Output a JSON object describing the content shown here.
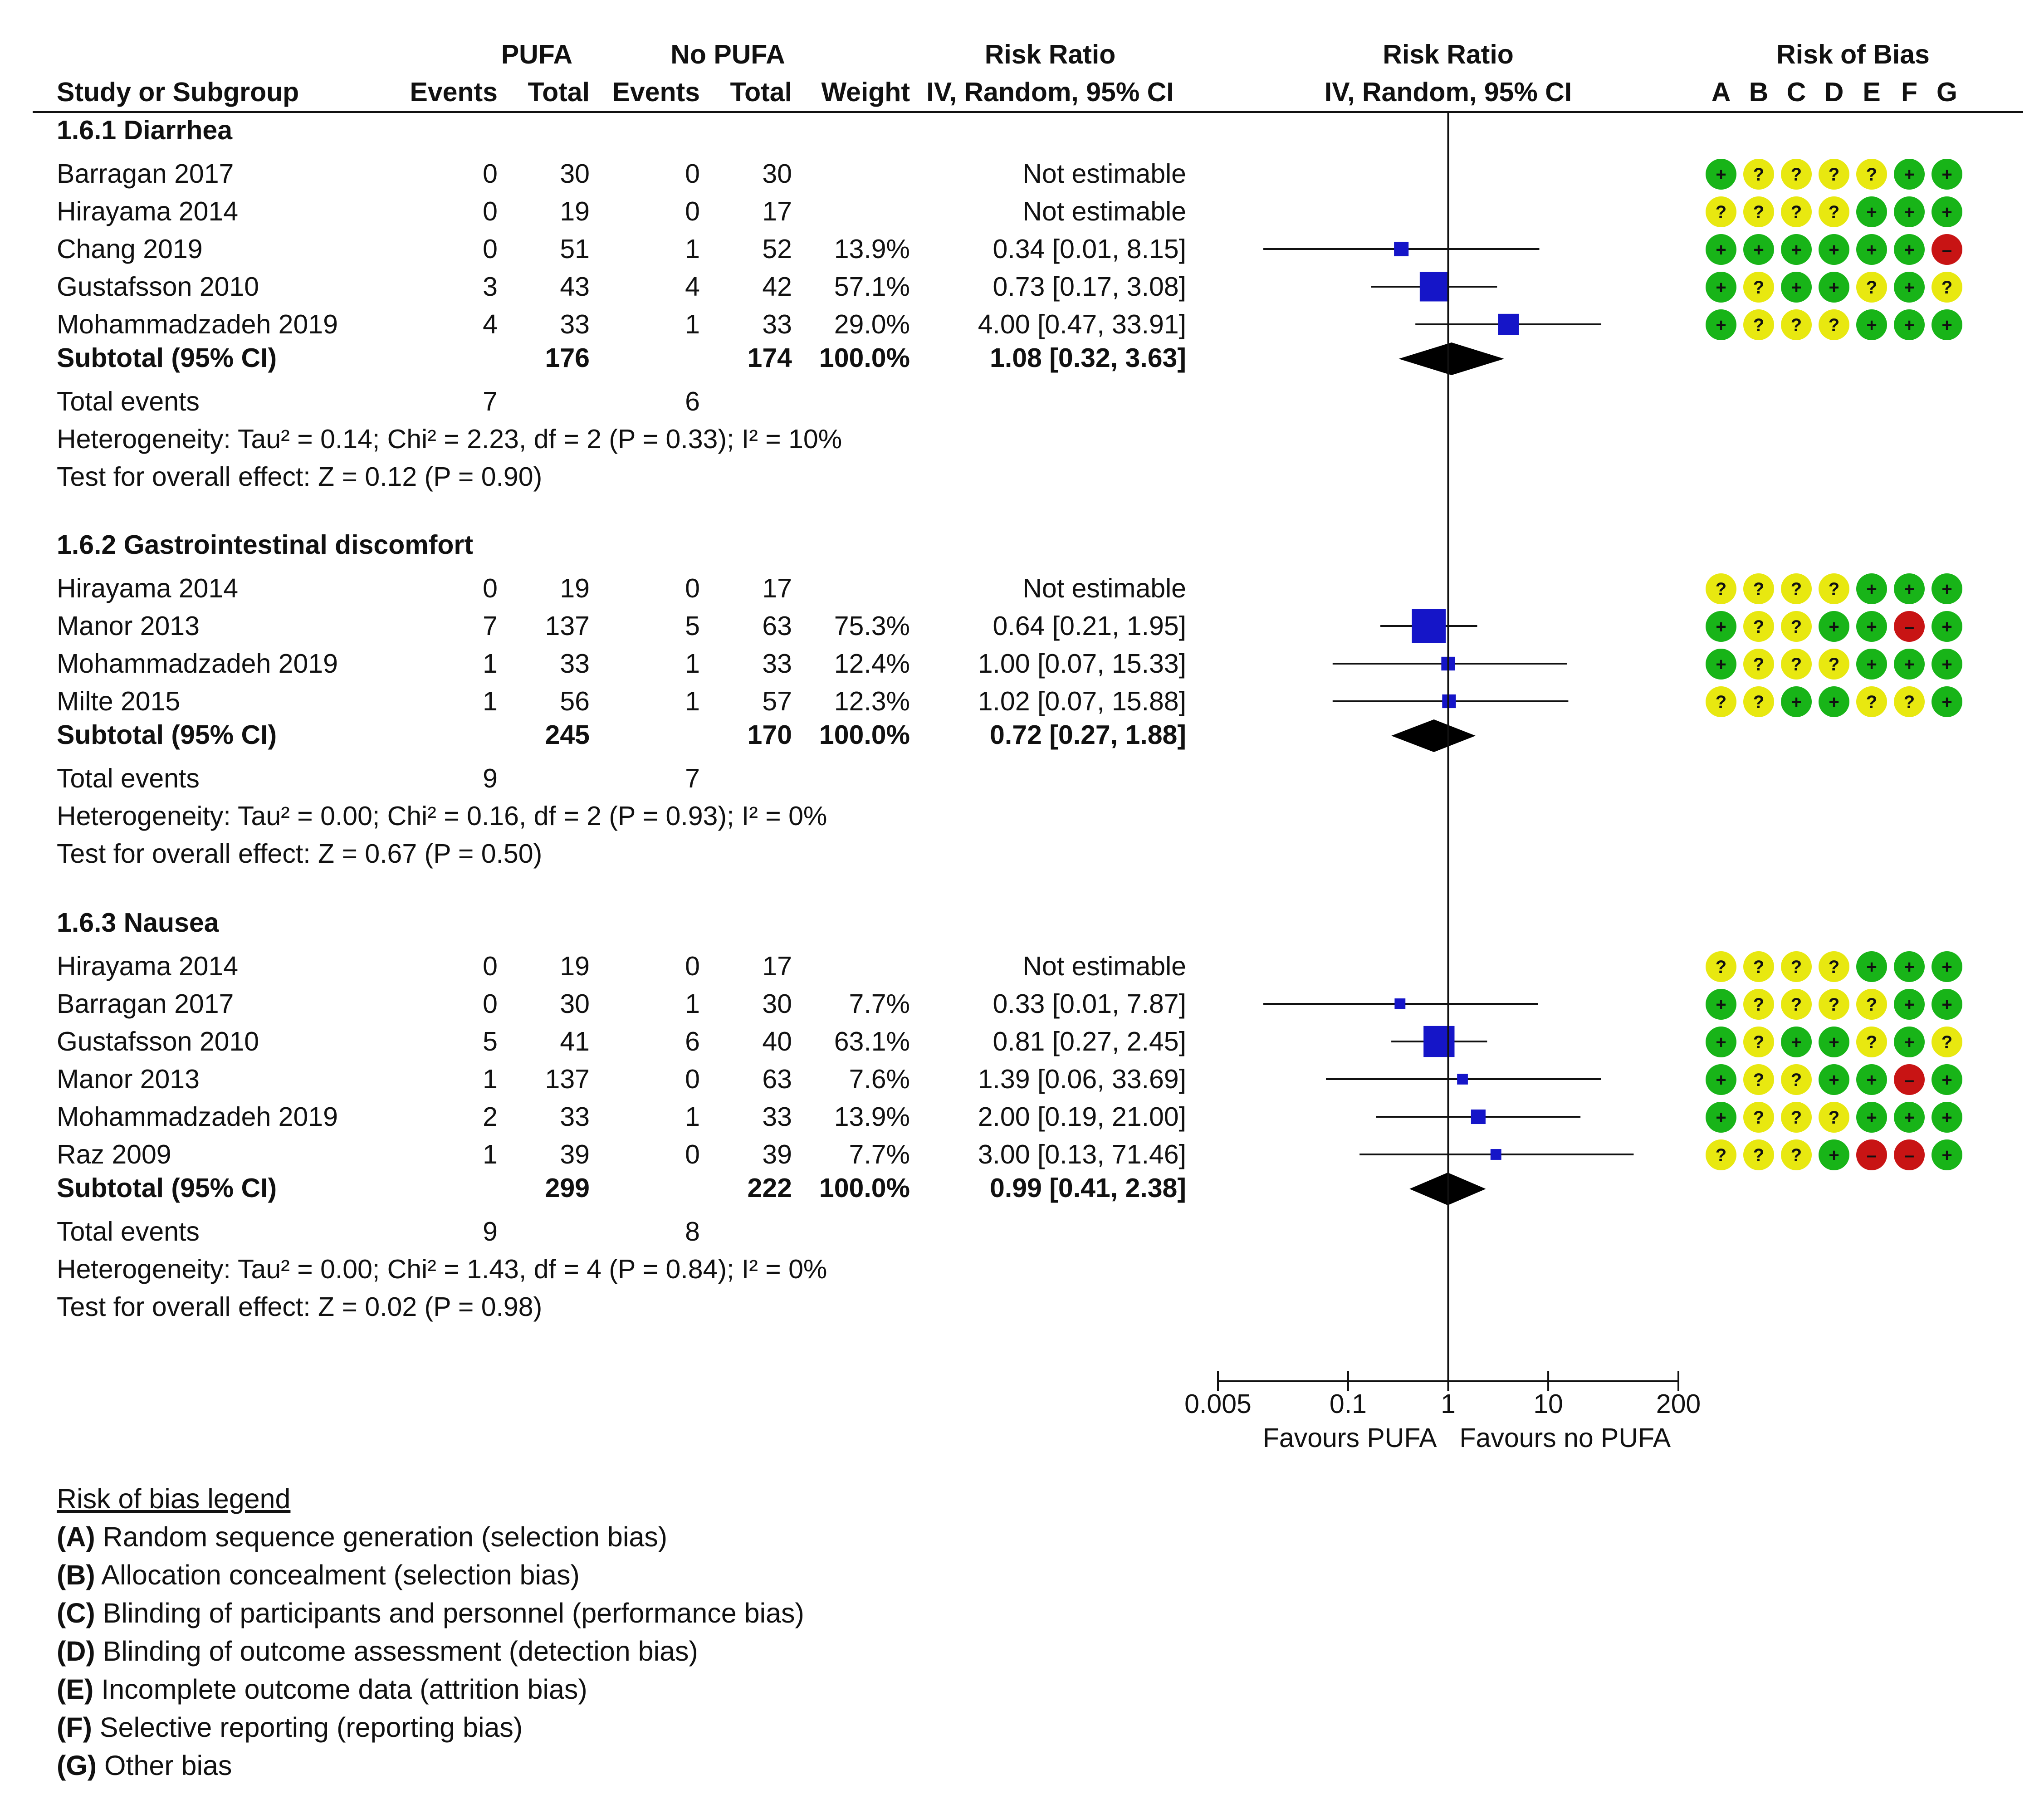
{
  "chart_data": {
    "type": "forest",
    "scale": "log",
    "xlim": [
      0.005,
      200
    ],
    "ticks": [
      "0.005",
      "0.1",
      "1",
      "10",
      "200"
    ],
    "favours_left": "Favours PUFA",
    "favours_right": "Favours no PUFA",
    "headers": {
      "group1": "PUFA",
      "group2": "No PUFA",
      "study": "Study or Subgroup",
      "events": "Events",
      "total": "Total",
      "weight": "Weight",
      "rr": "Risk Ratio",
      "rr_method": "IV, Random, 95% CI",
      "rob": "Risk of Bias",
      "rob_letters": [
        "A",
        "B",
        "C",
        "D",
        "E",
        "F",
        "G"
      ]
    },
    "subgroups": [
      {
        "title": "1.6.1 Diarrhea",
        "studies": [
          {
            "name": "Barragan 2017",
            "e1": "0",
            "n1": "30",
            "e2": "0",
            "n2": "30",
            "weight": "",
            "ci": "Not estimable",
            "rr": null,
            "lo": null,
            "hi": null,
            "rob": [
              "+",
              "?",
              "?",
              "?",
              "?",
              "+",
              "+"
            ]
          },
          {
            "name": "Hirayama 2014",
            "e1": "0",
            "n1": "19",
            "e2": "0",
            "n2": "17",
            "weight": "",
            "ci": "Not estimable",
            "rr": null,
            "lo": null,
            "hi": null,
            "rob": [
              "?",
              "?",
              "?",
              "?",
              "+",
              "+",
              "+"
            ]
          },
          {
            "name": "Chang 2019",
            "e1": "0",
            "n1": "51",
            "e2": "1",
            "n2": "52",
            "weight": "13.9%",
            "ci": "0.34 [0.01, 8.15]",
            "rr": 0.34,
            "lo": 0.0142,
            "hi": 8.15,
            "rob": [
              "+",
              "+",
              "+",
              "+",
              "+",
              "+",
              "-"
            ]
          },
          {
            "name": "Gustafsson 2010",
            "e1": "3",
            "n1": "43",
            "e2": "4",
            "n2": "42",
            "weight": "57.1%",
            "ci": "0.73 [0.17, 3.08]",
            "rr": 0.73,
            "lo": 0.17,
            "hi": 3.08,
            "rob": [
              "+",
              "?",
              "+",
              "+",
              "?",
              "+",
              "?"
            ]
          },
          {
            "name": "Mohammadzadeh 2019",
            "e1": "4",
            "n1": "33",
            "e2": "1",
            "n2": "33",
            "weight": "29.0%",
            "ci": "4.00 [0.47, 33.91]",
            "rr": 4.0,
            "lo": 0.47,
            "hi": 33.91,
            "rob": [
              "+",
              "?",
              "?",
              "?",
              "+",
              "+",
              "+"
            ]
          }
        ],
        "subtotal": {
          "label": "Subtotal (95% CI)",
          "n1": "176",
          "n2": "174",
          "weight": "100.0%",
          "ci": "1.08 [0.32, 3.63]",
          "rr": 1.08,
          "lo": 0.32,
          "hi": 3.63
        },
        "total_events": {
          "label": "Total events",
          "e1": "7",
          "e2": "6"
        },
        "heterogeneity": "Heterogeneity: Tau² = 0.14; Chi² = 2.23, df = 2 (P = 0.33); I² = 10%",
        "overall": "Test for overall effect: Z = 0.12 (P = 0.90)"
      },
      {
        "title": "1.6.2 Gastrointestinal discomfort",
        "studies": [
          {
            "name": "Hirayama 2014",
            "e1": "0",
            "n1": "19",
            "e2": "0",
            "n2": "17",
            "weight": "",
            "ci": "Not estimable",
            "rr": null,
            "lo": null,
            "hi": null,
            "rob": [
              "?",
              "?",
              "?",
              "?",
              "+",
              "+",
              "+"
            ]
          },
          {
            "name": "Manor 2013",
            "e1": "7",
            "n1": "137",
            "e2": "5",
            "n2": "63",
            "weight": "75.3%",
            "ci": "0.64 [0.21, 1.95]",
            "rr": 0.64,
            "lo": 0.21,
            "hi": 1.95,
            "rob": [
              "+",
              "?",
              "?",
              "+",
              "+",
              "-",
              "+"
            ]
          },
          {
            "name": "Mohammadzadeh 2019",
            "e1": "1",
            "n1": "33",
            "e2": "1",
            "n2": "33",
            "weight": "12.4%",
            "ci": "1.00 [0.07, 15.33]",
            "rr": 1.0,
            "lo": 0.07,
            "hi": 15.33,
            "rob": [
              "+",
              "?",
              "?",
              "?",
              "+",
              "+",
              "+"
            ]
          },
          {
            "name": "Milte 2015",
            "e1": "1",
            "n1": "56",
            "e2": "1",
            "n2": "57",
            "weight": "12.3%",
            "ci": "1.02 [0.07, 15.88]",
            "rr": 1.02,
            "lo": 0.07,
            "hi": 15.88,
            "rob": [
              "?",
              "?",
              "+",
              "+",
              "?",
              "?",
              "+"
            ]
          }
        ],
        "subtotal": {
          "label": "Subtotal (95% CI)",
          "n1": "245",
          "n2": "170",
          "weight": "100.0%",
          "ci": "0.72 [0.27, 1.88]",
          "rr": 0.72,
          "lo": 0.27,
          "hi": 1.88
        },
        "total_events": {
          "label": "Total events",
          "e1": "9",
          "e2": "7"
        },
        "heterogeneity": "Heterogeneity: Tau² = 0.00; Chi² = 0.16, df = 2 (P = 0.93); I² = 0%",
        "overall": "Test for overall effect: Z = 0.67 (P = 0.50)"
      },
      {
        "title": "1.6.3 Nausea",
        "studies": [
          {
            "name": "Hirayama 2014",
            "e1": "0",
            "n1": "19",
            "e2": "0",
            "n2": "17",
            "weight": "",
            "ci": "Not estimable",
            "rr": null,
            "lo": null,
            "hi": null,
            "rob": [
              "?",
              "?",
              "?",
              "?",
              "+",
              "+",
              "+"
            ]
          },
          {
            "name": "Barragan 2017",
            "e1": "0",
            "n1": "30",
            "e2": "1",
            "n2": "30",
            "weight": "7.7%",
            "ci": "0.33 [0.01, 7.87]",
            "rr": 0.33,
            "lo": 0.0142,
            "hi": 7.87,
            "rob": [
              "+",
              "?",
              "?",
              "?",
              "?",
              "+",
              "+"
            ]
          },
          {
            "name": "Gustafsson 2010",
            "e1": "5",
            "n1": "41",
            "e2": "6",
            "n2": "40",
            "weight": "63.1%",
            "ci": "0.81 [0.27, 2.45]",
            "rr": 0.81,
            "lo": 0.27,
            "hi": 2.45,
            "rob": [
              "+",
              "?",
              "+",
              "+",
              "?",
              "+",
              "?"
            ]
          },
          {
            "name": "Manor 2013",
            "e1": "1",
            "n1": "137",
            "e2": "0",
            "n2": "63",
            "weight": "7.6%",
            "ci": "1.39 [0.06, 33.69]",
            "rr": 1.39,
            "lo": 0.06,
            "hi": 33.69,
            "rob": [
              "+",
              "?",
              "?",
              "+",
              "+",
              "-",
              "+"
            ]
          },
          {
            "name": "Mohammadzadeh 2019",
            "e1": "2",
            "n1": "33",
            "e2": "1",
            "n2": "33",
            "weight": "13.9%",
            "ci": "2.00 [0.19, 21.00]",
            "rr": 2.0,
            "lo": 0.19,
            "hi": 21.0,
            "rob": [
              "+",
              "?",
              "?",
              "?",
              "+",
              "+",
              "+"
            ]
          },
          {
            "name": "Raz 2009",
            "e1": "1",
            "n1": "39",
            "e2": "0",
            "n2": "39",
            "weight": "7.7%",
            "ci": "3.00 [0.13, 71.46]",
            "rr": 3.0,
            "lo": 0.13,
            "hi": 71.46,
            "rob": [
              "?",
              "?",
              "?",
              "+",
              "-",
              "-",
              "+"
            ]
          }
        ],
        "subtotal": {
          "label": "Subtotal (95% CI)",
          "n1": "299",
          "n2": "222",
          "weight": "100.0%",
          "ci": "0.99 [0.41, 2.38]",
          "rr": 0.99,
          "lo": 0.41,
          "hi": 2.38
        },
        "total_events": {
          "label": "Total events",
          "e1": "9",
          "e2": "8"
        },
        "heterogeneity": "Heterogeneity: Tau² = 0.00; Chi² = 1.43, df = 4 (P = 0.84); I² = 0%",
        "overall": "Test for overall effect: Z = 0.02 (P = 0.98)"
      }
    ],
    "legend": {
      "title": "Risk of bias legend",
      "items": [
        {
          "key": "(A)",
          "text": " Random sequence generation (selection bias)"
        },
        {
          "key": "(B)",
          "text": " Allocation concealment (selection bias)"
        },
        {
          "key": "(C)",
          "text": " Blinding of participants and personnel (performance bias)"
        },
        {
          "key": "(D)",
          "text": " Blinding of outcome assessment (detection bias)"
        },
        {
          "key": "(E)",
          "text": " Incomplete outcome data (attrition bias)"
        },
        {
          "key": "(F)",
          "text": " Selective reporting (reporting bias)"
        },
        {
          "key": "(G)",
          "text": " Other bias"
        }
      ]
    }
  },
  "colors": {
    "ink": "#111111",
    "marker": "#1515c8",
    "diamond": "#000000",
    "rob_low": "#18b418",
    "rob_unclear": "#e8e810",
    "rob_high": "#c81414"
  }
}
